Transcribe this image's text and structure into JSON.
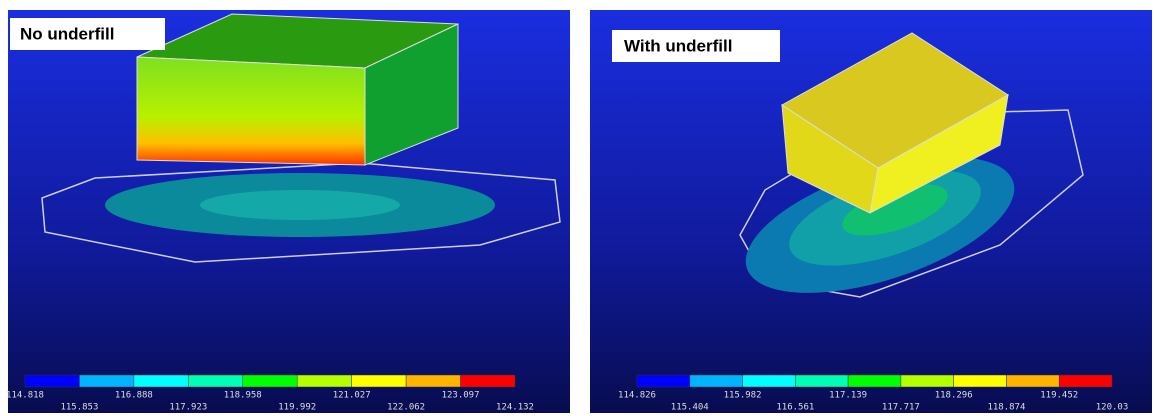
{
  "panels": [
    {
      "label": "No underfill",
      "legend": [
        "114.818",
        "115.853",
        "116.888",
        "117.923",
        "118.958",
        "119.992",
        "121.027",
        "122.062",
        "123.097",
        "124.132"
      ]
    },
    {
      "label": "With underfill",
      "legend": [
        "114.826",
        "115.404",
        "115.982",
        "116.561",
        "117.139",
        "117.717",
        "118.296",
        "118.874",
        "119.452",
        "120.03"
      ]
    }
  ]
}
